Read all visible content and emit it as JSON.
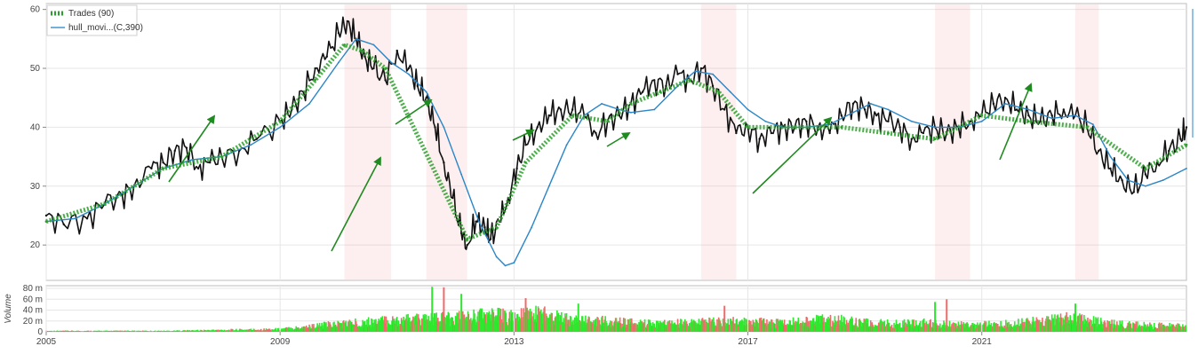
{
  "chart_data": [
    {
      "type": "line",
      "title": "",
      "grid": true,
      "legend_placement": "top-left",
      "x_range": [
        2005.0,
        2024.5
      ],
      "ylim": [
        14,
        61
      ],
      "y_ticks": [
        20,
        30,
        40,
        50,
        60
      ],
      "x_ticks": [
        2005,
        2009,
        2013,
        2017,
        2021
      ],
      "x_tick_labels": [
        "2005",
        "2009",
        "2013",
        "2017",
        "2021"
      ],
      "legend": [
        {
          "label": "Trades (90)",
          "style": "dashed-green"
        },
        {
          "label": "hull_movi...(C,390)",
          "style": "blue-line"
        }
      ],
      "series": [
        {
          "name": "",
          "style": "price-black",
          "color": "#111111",
          "points": [
            [
              2005.0,
              25
            ],
            [
              2005.3,
              23.5
            ],
            [
              2005.7,
              24.5
            ],
            [
              2006.0,
              27
            ],
            [
              2006.3,
              28.5
            ],
            [
              2006.5,
              30
            ],
            [
              2006.8,
              33
            ],
            [
              2007.0,
              34
            ],
            [
              2007.2,
              36
            ],
            [
              2007.4,
              36.5
            ],
            [
              2007.6,
              33
            ],
            [
              2007.8,
              34
            ],
            [
              2008.0,
              35
            ],
            [
              2008.3,
              36
            ],
            [
              2008.6,
              38
            ],
            [
              2009.0,
              41
            ],
            [
              2009.2,
              43
            ],
            [
              2009.4,
              46
            ],
            [
              2009.6,
              50
            ],
            [
              2009.8,
              52
            ],
            [
              2010.0,
              56
            ],
            [
              2010.15,
              58
            ],
            [
              2010.3,
              55
            ],
            [
              2010.45,
              52
            ],
            [
              2010.6,
              50
            ],
            [
              2010.8,
              48
            ],
            [
              2011.0,
              53
            ],
            [
              2011.2,
              50
            ],
            [
              2011.35,
              47
            ],
            [
              2011.5,
              45
            ],
            [
              2011.65,
              40
            ],
            [
              2011.8,
              34
            ],
            [
              2011.95,
              28
            ],
            [
              2012.1,
              22
            ],
            [
              2012.2,
              20
            ],
            [
              2012.35,
              24
            ],
            [
              2012.5,
              23
            ],
            [
              2012.6,
              21
            ],
            [
              2012.75,
              24
            ],
            [
              2012.9,
              28
            ],
            [
              2013.05,
              33
            ],
            [
              2013.2,
              37
            ],
            [
              2013.4,
              40
            ],
            [
              2013.6,
              42
            ],
            [
              2013.8,
              43
            ],
            [
              2014.0,
              43
            ],
            [
              2014.2,
              42
            ],
            [
              2014.4,
              39
            ],
            [
              2014.6,
              41
            ],
            [
              2014.8,
              42
            ],
            [
              2015.0,
              44
            ],
            [
              2015.2,
              46
            ],
            [
              2015.4,
              48
            ],
            [
              2015.6,
              47
            ],
            [
              2015.8,
              49
            ],
            [
              2016.0,
              48
            ],
            [
              2016.2,
              50
            ],
            [
              2016.4,
              47
            ],
            [
              2016.6,
              43
            ],
            [
              2016.8,
              39
            ],
            [
              2017.0,
              40
            ],
            [
              2017.2,
              38
            ],
            [
              2017.4,
              39
            ],
            [
              2017.6,
              40
            ],
            [
              2017.8,
              40
            ],
            [
              2018.0,
              41
            ],
            [
              2018.2,
              40
            ],
            [
              2018.4,
              39
            ],
            [
              2018.6,
              42
            ],
            [
              2018.8,
              44
            ],
            [
              2019.0,
              43
            ],
            [
              2019.2,
              42
            ],
            [
              2019.4,
              41
            ],
            [
              2019.6,
              40
            ],
            [
              2019.8,
              38
            ],
            [
              2020.0,
              39
            ],
            [
              2020.2,
              40
            ],
            [
              2020.4,
              39
            ],
            [
              2020.6,
              40
            ],
            [
              2020.8,
              41
            ],
            [
              2021.0,
              42
            ],
            [
              2021.2,
              44
            ],
            [
              2021.4,
              45
            ],
            [
              2021.6,
              43
            ],
            [
              2021.8,
              42
            ],
            [
              2022.0,
              41
            ],
            [
              2022.2,
              42
            ],
            [
              2022.4,
              43
            ],
            [
              2022.6,
              42
            ],
            [
              2022.8,
              40
            ],
            [
              2023.0,
              36
            ],
            [
              2023.2,
              33
            ],
            [
              2023.4,
              31
            ],
            [
              2023.6,
              29
            ],
            [
              2023.8,
              32
            ],
            [
              2024.0,
              34
            ],
            [
              2024.2,
              36
            ],
            [
              2024.4,
              38
            ],
            [
              2024.5,
              40
            ]
          ]
        },
        {
          "name": "hull_movi...(C,390)",
          "style": "hull-blue",
          "color": "#2a86c8",
          "points": [
            [
              2005.0,
              24
            ],
            [
              2005.5,
              24.5
            ],
            [
              2006.0,
              27
            ],
            [
              2006.5,
              30
            ],
            [
              2007.0,
              33
            ],
            [
              2007.5,
              34.5
            ],
            [
              2008.0,
              35
            ],
            [
              2008.5,
              37
            ],
            [
              2009.0,
              40
            ],
            [
              2009.5,
              44
            ],
            [
              2010.0,
              51
            ],
            [
              2010.3,
              55
            ],
            [
              2010.6,
              54
            ],
            [
              2010.9,
              51
            ],
            [
              2011.2,
              49
            ],
            [
              2011.5,
              46
            ],
            [
              2011.8,
              40
            ],
            [
              2012.1,
              32
            ],
            [
              2012.4,
              24
            ],
            [
              2012.7,
              18
            ],
            [
              2012.85,
              16.5
            ],
            [
              2013.0,
              17
            ],
            [
              2013.3,
              23
            ],
            [
              2013.6,
              30
            ],
            [
              2013.9,
              37
            ],
            [
              2014.2,
              42
            ],
            [
              2014.5,
              44
            ],
            [
              2014.8,
              43
            ],
            [
              2015.0,
              42.5
            ],
            [
              2015.4,
              43
            ],
            [
              2015.8,
              47
            ],
            [
              2016.1,
              49.5
            ],
            [
              2016.4,
              49
            ],
            [
              2016.7,
              46
            ],
            [
              2017.0,
              43
            ],
            [
              2017.3,
              41
            ],
            [
              2017.6,
              40
            ],
            [
              2018.0,
              40
            ],
            [
              2018.4,
              40.5
            ],
            [
              2018.8,
              42.5
            ],
            [
              2019.1,
              44
            ],
            [
              2019.4,
              43
            ],
            [
              2019.8,
              41
            ],
            [
              2020.2,
              40
            ],
            [
              2020.6,
              40
            ],
            [
              2021.0,
              41
            ],
            [
              2021.4,
              44
            ],
            [
              2021.8,
              43
            ],
            [
              2022.2,
              41.5
            ],
            [
              2022.6,
              42
            ],
            [
              2022.9,
              40.5
            ],
            [
              2023.2,
              35
            ],
            [
              2023.5,
              31
            ],
            [
              2023.8,
              30
            ],
            [
              2024.1,
              31
            ],
            [
              2024.5,
              33
            ]
          ]
        },
        {
          "name": "Trades (90)",
          "style": "trades-green",
          "color": "#2ca02c",
          "points": [
            [
              2005.0,
              24
            ],
            [
              2006.0,
              27
            ],
            [
              2007.0,
              33
            ],
            [
              2008.0,
              35
            ],
            [
              2009.0,
              41
            ],
            [
              2009.6,
              48
            ],
            [
              2010.1,
              54
            ],
            [
              2010.4,
              53
            ],
            [
              2010.8,
              50
            ],
            [
              2012.2,
              21
            ],
            [
              2012.7,
              23
            ],
            [
              2013.2,
              34
            ],
            [
              2014.0,
              42
            ],
            [
              2014.6,
              41
            ],
            [
              2015.0,
              44
            ],
            [
              2015.5,
              46
            ],
            [
              2016.0,
              48
            ],
            [
              2016.5,
              46
            ],
            [
              2017.0,
              40
            ],
            [
              2017.8,
              40
            ],
            [
              2018.6,
              40
            ],
            [
              2019.4,
              39
            ],
            [
              2020.2,
              38
            ],
            [
              2021.0,
              42
            ],
            [
              2021.8,
              41
            ],
            [
              2022.8,
              40
            ],
            [
              2023.8,
              33
            ],
            [
              2024.5,
              37
            ]
          ]
        }
      ]
    },
    {
      "type": "bar",
      "ylabel": "Volume",
      "ylim": [
        0,
        85
      ],
      "y_ticks": [
        0,
        20,
        40,
        60,
        80
      ],
      "y_tick_labels": [
        "0",
        "20 m",
        "40 m",
        "60 m",
        "80 m"
      ],
      "x_range": [
        2005.0,
        2024.5
      ],
      "up_color": "#2ee82e",
      "down_color": "#f06a6a",
      "bars": [
        [
          2005.0,
          2
        ],
        [
          2005.5,
          2
        ],
        [
          2006.0,
          2
        ],
        [
          2006.5,
          2
        ],
        [
          2007.0,
          2
        ],
        [
          2007.5,
          3
        ],
        [
          2008.0,
          4
        ],
        [
          2008.5,
          5
        ],
        [
          2009.0,
          6
        ],
        [
          2009.5,
          12
        ],
        [
          2010.0,
          18
        ],
        [
          2010.5,
          22
        ],
        [
          2011.0,
          26
        ],
        [
          2011.5,
          28
        ],
        [
          2012.0,
          30
        ],
        [
          2012.5,
          38
        ],
        [
          2013.0,
          34
        ],
        [
          2013.5,
          42
        ],
        [
          2014.0,
          25
        ],
        [
          2014.5,
          24
        ],
        [
          2015.0,
          20
        ],
        [
          2015.5,
          18
        ],
        [
          2016.0,
          20
        ],
        [
          2016.5,
          22
        ],
        [
          2017.0,
          22
        ],
        [
          2017.5,
          20
        ],
        [
          2018.0,
          24
        ],
        [
          2018.5,
          28
        ],
        [
          2019.0,
          20
        ],
        [
          2019.5,
          18
        ],
        [
          2020.0,
          20
        ],
        [
          2020.5,
          16
        ],
        [
          2021.0,
          16
        ],
        [
          2021.5,
          18
        ],
        [
          2022.0,
          24
        ],
        [
          2022.5,
          30
        ],
        [
          2023.0,
          22
        ],
        [
          2023.5,
          16
        ],
        [
          2024.0,
          14
        ],
        [
          2024.5,
          12
        ]
      ]
    }
  ],
  "colors": {
    "price": "#111111",
    "hull": "#2a86c8",
    "trades": "#2ca02c",
    "arrow": "#1f8a1f",
    "volume_up": "#2ee82e",
    "volume_down": "#f06a6a",
    "grid": "#e6e6e6"
  }
}
